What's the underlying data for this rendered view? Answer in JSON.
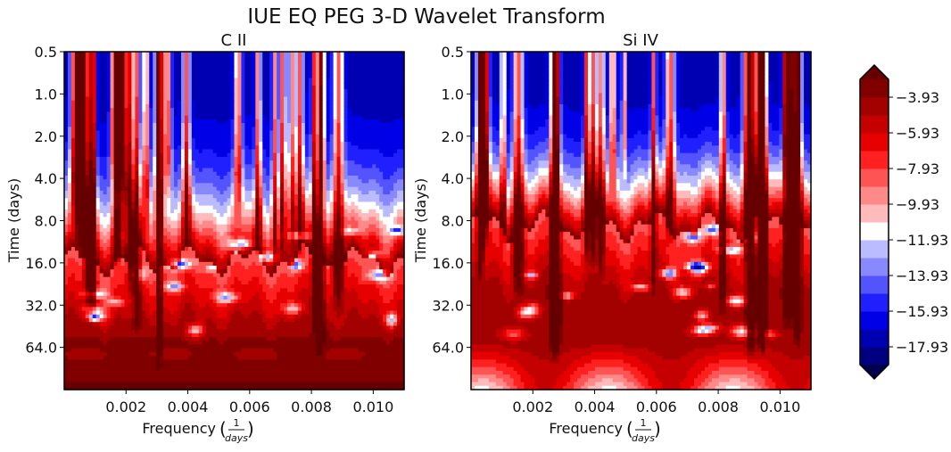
{
  "chart_data": {
    "type": "heatmap",
    "title": "IUE EQ PEG 3-D Wavelet Transform",
    "panels": [
      {
        "subtitle": "C II",
        "xlabel": "Frequency",
        "xlabel_unit": "(1/days)",
        "xlabel_unit_num": "1",
        "xlabel_unit_den": "days",
        "ylabel": "Time (days)",
        "xlim": [
          0,
          0.011
        ],
        "xticks": [
          0.002,
          0.004,
          0.006,
          0.008,
          0.01
        ],
        "xtick_labels": [
          "0.002",
          "0.004",
          "0.006",
          "0.008",
          "0.010"
        ],
        "yticks": [
          0.5,
          1.0,
          2.0,
          4.0,
          8.0,
          16.0,
          32.0,
          64.0
        ],
        "ytick_labels": [
          "0.5",
          "1.0",
          "2.0",
          "4.0",
          "8.0",
          "16.0",
          "32.0",
          "64.0"
        ],
        "ylim": [
          0.5,
          128
        ],
        "yscale": "log2, inverted",
        "seed": 11,
        "fringe_base": 0.62,
        "deep_bottom": true
      },
      {
        "subtitle": "Si IV",
        "xlabel": "Frequency",
        "xlabel_unit": "(1/days)",
        "xlabel_unit_num": "1",
        "xlabel_unit_den": "days",
        "ylabel": "Time (days)",
        "xlim": [
          0,
          0.011
        ],
        "xticks": [
          0.002,
          0.004,
          0.006,
          0.008,
          0.01
        ],
        "xtick_labels": [
          "0.002",
          "0.004",
          "0.006",
          "0.008",
          "0.010"
        ],
        "yticks": [
          0.5,
          1.0,
          2.0,
          4.0,
          8.0,
          16.0,
          32.0,
          64.0
        ],
        "ytick_labels": [
          "0.5",
          "1.0",
          "2.0",
          "4.0",
          "8.0",
          "16.0",
          "32.0",
          "64.0"
        ],
        "ylim": [
          0.5,
          128
        ],
        "yscale": "log2, inverted",
        "seed": 29,
        "fringe_base": 0.52,
        "deep_bottom": false
      }
    ],
    "colorbar": {
      "min": -18.93,
      "max": -2.93,
      "levels": [
        -18.93,
        -17.93,
        -16.93,
        -15.93,
        -14.93,
        -13.93,
        -12.93,
        -11.93,
        -10.93,
        -9.93,
        -8.93,
        -7.93,
        -6.93,
        -5.93,
        -4.93,
        -3.93,
        -2.93
      ],
      "tick_labels": [
        "-3.93",
        "-5.93",
        "-7.93",
        "-9.93",
        "-11.93",
        "-13.93",
        "-15.93",
        "-17.93"
      ],
      "extend": "both",
      "colormap": "seismic",
      "colors": [
        "#00004c",
        "#000080",
        "#0000b3",
        "#0000e6",
        "#2020ff",
        "#5454ff",
        "#8888ff",
        "#bbbbff",
        "#ffffff",
        "#ffbbbb",
        "#ff8888",
        "#ff5454",
        "#ff2020",
        "#e60000",
        "#c40000",
        "#a30000",
        "#800000",
        "#660000"
      ]
    }
  }
}
